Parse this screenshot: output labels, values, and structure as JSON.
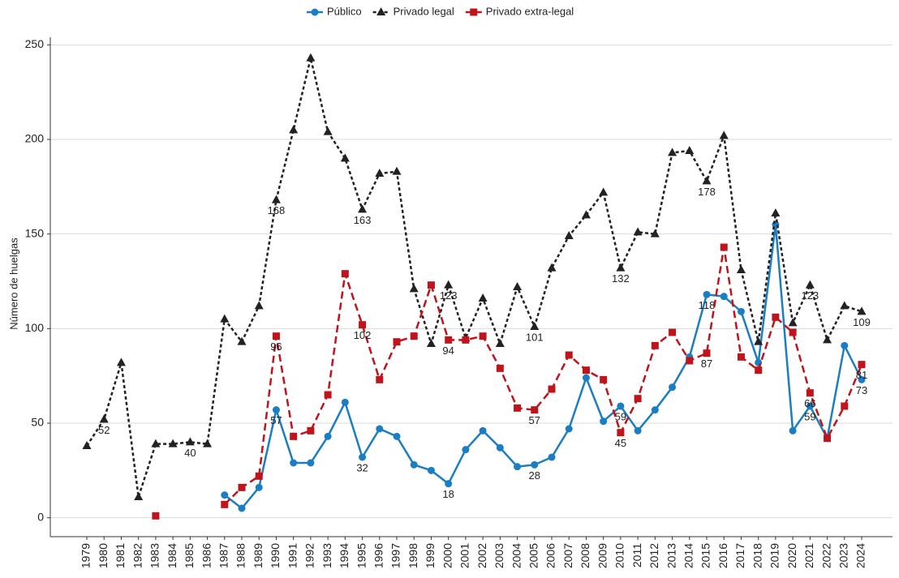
{
  "chart_data": {
    "type": "line",
    "y_label": "Número de huelgas",
    "categories": [
      "1979",
      "1980",
      "1981",
      "1982",
      "1983",
      "1984",
      "1985",
      "1986",
      "1987",
      "1988",
      "1989",
      "1990",
      "1991",
      "1992",
      "1993",
      "1994",
      "1995",
      "1996",
      "1997",
      "1998",
      "1999",
      "2000",
      "2001",
      "2002",
      "2003",
      "2004",
      "2005",
      "2006",
      "2007",
      "2008",
      "2009",
      "2010",
      "2011",
      "2012",
      "2013",
      "2014",
      "2015",
      "2016",
      "2017",
      "2018",
      "2019",
      "2020",
      "2021",
      "2022",
      "2023",
      "2024"
    ],
    "series": [
      {
        "name": "Público",
        "color": "#1b7ec2",
        "marker": "circle",
        "dash": "solid",
        "values": [
          null,
          null,
          null,
          null,
          null,
          null,
          null,
          null,
          12,
          5,
          16,
          57,
          29,
          29,
          43,
          61,
          32,
          47,
          43,
          28,
          25,
          18,
          36,
          46,
          37,
          27,
          28,
          32,
          47,
          74,
          51,
          59,
          46,
          57,
          69,
          85,
          118,
          117,
          109,
          82,
          155,
          46,
          59,
          42,
          91,
          73
        ],
        "value_labels": [
          null,
          null,
          null,
          null,
          null,
          null,
          null,
          null,
          null,
          null,
          null,
          "57",
          null,
          null,
          null,
          null,
          "32",
          null,
          null,
          null,
          null,
          "18",
          null,
          null,
          null,
          null,
          "28",
          null,
          null,
          null,
          null,
          "59",
          null,
          null,
          null,
          null,
          "118",
          null,
          null,
          null,
          null,
          null,
          "59",
          null,
          null,
          "73"
        ]
      },
      {
        "name": "Privado legal",
        "color": "#222222",
        "marker": "triangle",
        "dash": "dotted",
        "values": [
          38,
          52,
          82,
          11,
          39,
          39,
          40,
          39,
          105,
          93,
          112,
          168,
          205,
          243,
          204,
          190,
          163,
          182,
          183,
          121,
          92,
          123,
          95,
          116,
          92,
          122,
          101,
          132,
          149,
          160,
          172,
          132,
          151,
          150,
          193,
          194,
          178,
          202,
          131,
          93,
          161,
          103,
          123,
          94,
          112,
          109
        ],
        "value_labels": [
          null,
          "52",
          null,
          null,
          null,
          null,
          "40",
          null,
          null,
          null,
          null,
          "168",
          null,
          null,
          null,
          null,
          "163",
          null,
          null,
          null,
          null,
          "123",
          null,
          null,
          null,
          null,
          "101",
          null,
          null,
          null,
          null,
          "132",
          null,
          null,
          null,
          null,
          "178",
          null,
          null,
          null,
          null,
          null,
          "123",
          null,
          null,
          "109"
        ]
      },
      {
        "name": "Privado extra-legal",
        "color": "#c0141c",
        "marker": "square",
        "dash": "dashed",
        "values": [
          null,
          null,
          null,
          null,
          1,
          null,
          null,
          null,
          7,
          16,
          22,
          96,
          43,
          46,
          65,
          129,
          102,
          73,
          93,
          96,
          123,
          94,
          94,
          96,
          79,
          58,
          57,
          68,
          86,
          78,
          73,
          45,
          63,
          91,
          98,
          83,
          87,
          143,
          85,
          78,
          106,
          98,
          66,
          42,
          59,
          81
        ],
        "value_labels": [
          null,
          null,
          null,
          null,
          null,
          null,
          null,
          null,
          null,
          null,
          null,
          "96",
          null,
          null,
          null,
          null,
          "102",
          null,
          null,
          null,
          null,
          "94",
          null,
          null,
          null,
          null,
          "57",
          null,
          null,
          null,
          null,
          "45",
          null,
          null,
          null,
          null,
          "87",
          null,
          null,
          null,
          null,
          null,
          "66",
          null,
          null,
          "81"
        ]
      }
    ],
    "ylim": [
      -10,
      254
    ],
    "yticks": [
      0,
      50,
      100,
      150,
      200,
      250
    ],
    "grid": true,
    "legend": "top"
  }
}
